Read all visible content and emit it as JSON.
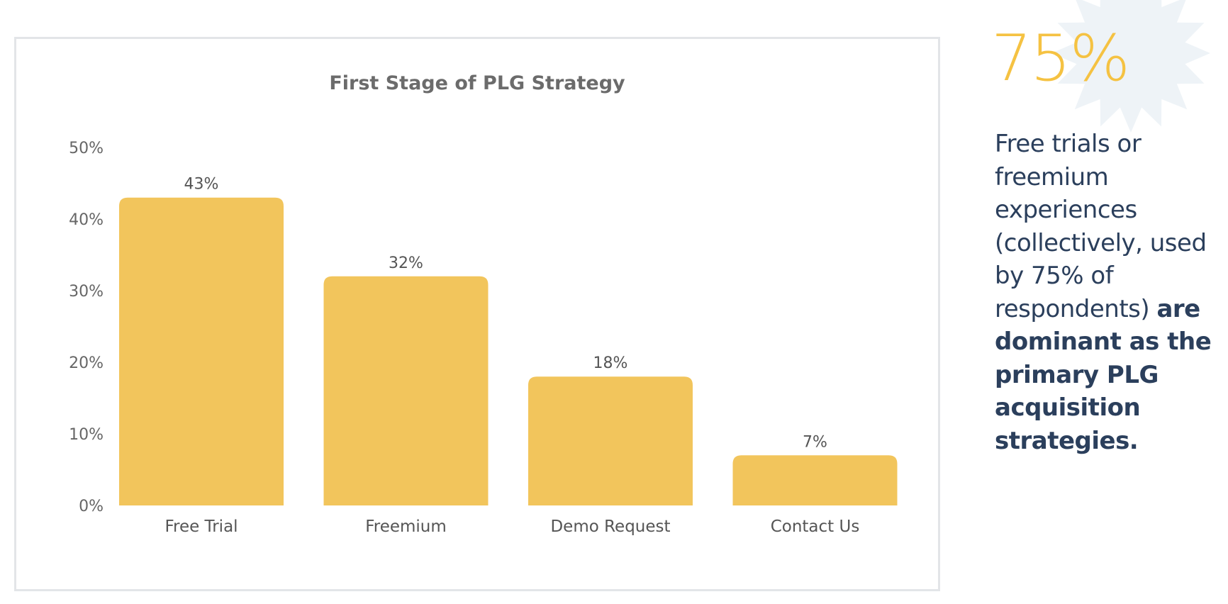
{
  "chart_data": {
    "type": "bar",
    "title": "First Stage of PLG Strategy",
    "categories": [
      "Free Trial",
      "Freemium",
      "Demo Request",
      "Contact Us"
    ],
    "values": [
      43,
      32,
      18,
      7
    ],
    "value_labels": [
      "43%",
      "32%",
      "18%",
      "7%"
    ],
    "yticks": [
      0,
      10,
      20,
      30,
      40,
      50
    ],
    "ytick_labels": [
      "0%",
      "10%",
      "20%",
      "30%",
      "40%",
      "50%"
    ],
    "ylim": [
      0,
      50
    ],
    "xlabel": "",
    "ylabel": "",
    "grid": false,
    "bar_color": "#F2C55C"
  },
  "callout": {
    "stat": "75%",
    "text_regular": "Free trials or freemium experiences (collectively, used by 75% of respondents)",
    "text_bold": "are dominant as the primary PLG acquisition strategies.",
    "stat_color": "#F5C242",
    "text_color": "#2B3F5C",
    "decoration": "starburst-icon"
  }
}
